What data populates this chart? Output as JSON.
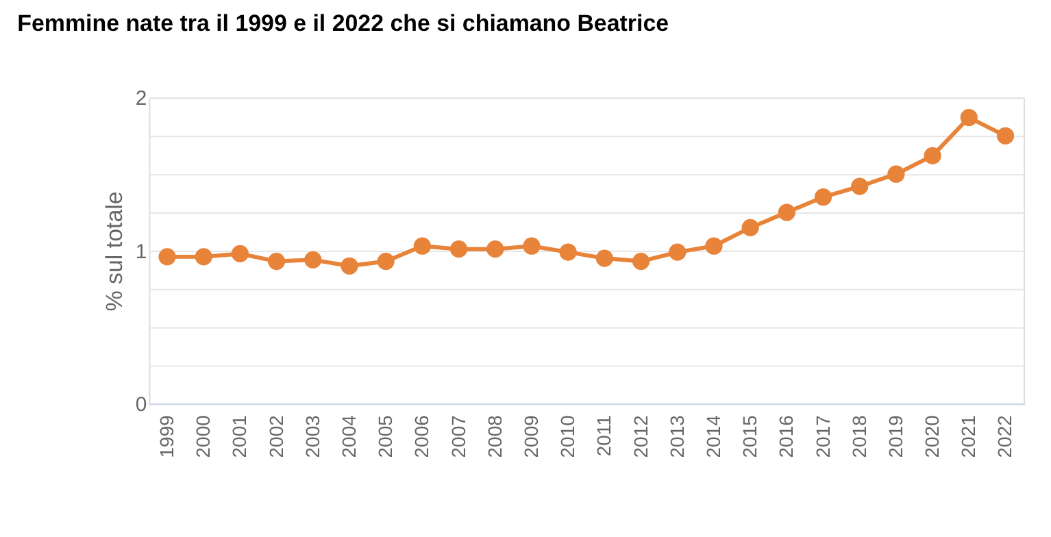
{
  "chart_data": {
    "type": "line",
    "title": "Femmine nate tra il 1999 e il 2022 che si chiamano Beatrice",
    "ylabel": "% sul totale",
    "categories": [
      "1999",
      "2000",
      "2001",
      "2002",
      "2003",
      "2004",
      "2005",
      "2006",
      "2007",
      "2008",
      "2009",
      "2010",
      "2011",
      "2012",
      "2013",
      "2014",
      "2015",
      "2016",
      "2017",
      "2018",
      "2019",
      "2020",
      "2021",
      "2022"
    ],
    "series": [
      {
        "color": "#e8833a",
        "values": [
          0.96,
          0.96,
          0.98,
          0.93,
          0.94,
          0.9,
          0.93,
          1.03,
          1.01,
          1.01,
          1.03,
          0.99,
          0.95,
          0.93,
          0.99,
          1.03,
          1.15,
          1.25,
          1.35,
          1.42,
          1.5,
          1.62,
          1.87,
          1.75
        ]
      }
    ],
    "ylim": [
      0,
      2
    ],
    "yticks": [
      0,
      {
        "value": 0.25,
        "label": null
      },
      {
        "value": 0.5,
        "label": null
      },
      {
        "value": 0.75,
        "label": null
      },
      1,
      {
        "value": 1.25,
        "label": null
      },
      {
        "value": 1.5,
        "label": null
      },
      {
        "value": 1.75,
        "label": null
      },
      2
    ],
    "grid": "y",
    "marker": "circle",
    "line_style": "solid"
  }
}
